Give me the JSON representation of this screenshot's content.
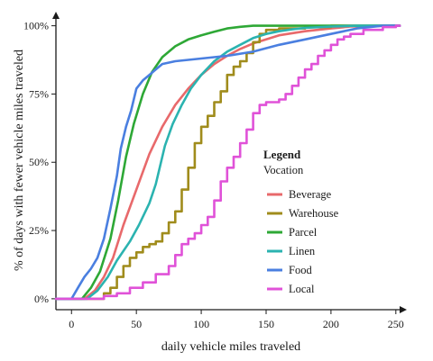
{
  "chart_data": {
    "type": "line",
    "xlabel": "daily vehicle miles traveled",
    "ylabel": "% of days with fewer vehicle miles traveled",
    "xlim": [
      -12,
      255
    ],
    "ylim": [
      -0.04,
      1.035
    ],
    "x_ticks": [
      {
        "value": 0,
        "label": "0"
      },
      {
        "value": 50,
        "label": "50"
      },
      {
        "value": 100,
        "label": "100"
      },
      {
        "value": 150,
        "label": "150"
      },
      {
        "value": 200,
        "label": "200"
      },
      {
        "value": 250,
        "label": "250"
      }
    ],
    "y_ticks": [
      {
        "value": 0,
        "label": "0%"
      },
      {
        "value": 0.25,
        "label": "25%"
      },
      {
        "value": 0.5,
        "label": "50%"
      },
      {
        "value": 0.75,
        "label": "75%"
      },
      {
        "value": 1.0,
        "label": "100%"
      }
    ],
    "grid": false,
    "legend": {
      "title": "Legend",
      "subtitle": "Vocation",
      "position": "right"
    },
    "series": [
      {
        "name": "Beverage",
        "color": "#e8696b",
        "step": false,
        "points": [
          [
            10,
            0
          ],
          [
            18,
            0.03
          ],
          [
            25,
            0.08
          ],
          [
            32,
            0.15
          ],
          [
            40,
            0.27
          ],
          [
            50,
            0.4
          ],
          [
            60,
            0.53
          ],
          [
            70,
            0.63
          ],
          [
            80,
            0.71
          ],
          [
            90,
            0.77
          ],
          [
            100,
            0.82
          ],
          [
            110,
            0.86
          ],
          [
            120,
            0.89
          ],
          [
            130,
            0.915
          ],
          [
            140,
            0.935
          ],
          [
            150,
            0.95
          ],
          [
            160,
            0.965
          ],
          [
            180,
            0.98
          ],
          [
            200,
            0.99
          ],
          [
            215,
            0.997
          ],
          [
            250,
            1.0
          ]
        ]
      },
      {
        "name": "Warehouse",
        "color": "#a08c1c",
        "step": true,
        "points": [
          [
            20,
            0
          ],
          [
            25,
            0.02
          ],
          [
            30,
            0.04
          ],
          [
            35,
            0.08
          ],
          [
            40,
            0.12
          ],
          [
            45,
            0.15
          ],
          [
            50,
            0.17
          ],
          [
            55,
            0.19
          ],
          [
            60,
            0.2
          ],
          [
            65,
            0.21
          ],
          [
            70,
            0.24
          ],
          [
            75,
            0.28
          ],
          [
            80,
            0.32
          ],
          [
            85,
            0.4
          ],
          [
            90,
            0.48
          ],
          [
            95,
            0.57
          ],
          [
            100,
            0.63
          ],
          [
            105,
            0.67
          ],
          [
            110,
            0.72
          ],
          [
            115,
            0.76
          ],
          [
            120,
            0.82
          ],
          [
            125,
            0.85
          ],
          [
            130,
            0.87
          ],
          [
            135,
            0.9
          ],
          [
            140,
            0.94
          ],
          [
            145,
            0.97
          ],
          [
            150,
            0.985
          ],
          [
            160,
            0.99
          ],
          [
            180,
            0.995
          ],
          [
            200,
            1.0
          ],
          [
            250,
            1.0
          ]
        ]
      },
      {
        "name": "Parcel",
        "color": "#2ea836",
        "step": false,
        "points": [
          [
            8,
            0
          ],
          [
            15,
            0.04
          ],
          [
            22,
            0.1
          ],
          [
            30,
            0.22
          ],
          [
            36,
            0.36
          ],
          [
            42,
            0.52
          ],
          [
            48,
            0.64
          ],
          [
            55,
            0.75
          ],
          [
            62,
            0.83
          ],
          [
            70,
            0.885
          ],
          [
            80,
            0.925
          ],
          [
            90,
            0.95
          ],
          [
            100,
            0.965
          ],
          [
            110,
            0.978
          ],
          [
            120,
            0.99
          ],
          [
            130,
            0.996
          ],
          [
            140,
            1.0
          ],
          [
            250,
            1.0
          ]
        ]
      },
      {
        "name": "Linen",
        "color": "#2bb3b0",
        "step": false,
        "points": [
          [
            12,
            0
          ],
          [
            20,
            0.03
          ],
          [
            28,
            0.08
          ],
          [
            35,
            0.14
          ],
          [
            45,
            0.21
          ],
          [
            52,
            0.27
          ],
          [
            60,
            0.35
          ],
          [
            65,
            0.42
          ],
          [
            72,
            0.56
          ],
          [
            78,
            0.64
          ],
          [
            85,
            0.71
          ],
          [
            92,
            0.77
          ],
          [
            100,
            0.82
          ],
          [
            110,
            0.87
          ],
          [
            120,
            0.905
          ],
          [
            130,
            0.93
          ],
          [
            140,
            0.955
          ],
          [
            150,
            0.97
          ],
          [
            160,
            0.98
          ],
          [
            170,
            0.987
          ],
          [
            180,
            0.992
          ],
          [
            200,
            0.997
          ],
          [
            220,
            1.0
          ],
          [
            250,
            1.0
          ]
        ]
      },
      {
        "name": "Food",
        "color": "#4a7fe0",
        "step": false,
        "points": [
          [
            0,
            0
          ],
          [
            5,
            0.04
          ],
          [
            10,
            0.08
          ],
          [
            15,
            0.11
          ],
          [
            20,
            0.15
          ],
          [
            25,
            0.22
          ],
          [
            30,
            0.33
          ],
          [
            35,
            0.45
          ],
          [
            38,
            0.55
          ],
          [
            42,
            0.63
          ],
          [
            46,
            0.69
          ],
          [
            50,
            0.77
          ],
          [
            55,
            0.8
          ],
          [
            60,
            0.82
          ],
          [
            65,
            0.84
          ],
          [
            70,
            0.86
          ],
          [
            80,
            0.87
          ],
          [
            90,
            0.875
          ],
          [
            100,
            0.88
          ],
          [
            120,
            0.89
          ],
          [
            140,
            0.905
          ],
          [
            160,
            0.93
          ],
          [
            180,
            0.95
          ],
          [
            200,
            0.97
          ],
          [
            220,
            0.99
          ],
          [
            240,
            1.0
          ],
          [
            250,
            1.0
          ]
        ]
      },
      {
        "name": "Local",
        "color": "#e052d8",
        "step": true,
        "points": [
          [
            15,
            0
          ],
          [
            25,
            0.01
          ],
          [
            35,
            0.02
          ],
          [
            45,
            0.04
          ],
          [
            55,
            0.06
          ],
          [
            65,
            0.09
          ],
          [
            75,
            0.12
          ],
          [
            80,
            0.16
          ],
          [
            85,
            0.2
          ],
          [
            90,
            0.22
          ],
          [
            95,
            0.24
          ],
          [
            100,
            0.27
          ],
          [
            105,
            0.3
          ],
          [
            110,
            0.36
          ],
          [
            115,
            0.43
          ],
          [
            120,
            0.48
          ],
          [
            125,
            0.52
          ],
          [
            130,
            0.57
          ],
          [
            135,
            0.62
          ],
          [
            140,
            0.68
          ],
          [
            145,
            0.71
          ],
          [
            150,
            0.72
          ],
          [
            155,
            0.72
          ],
          [
            160,
            0.73
          ],
          [
            165,
            0.75
          ],
          [
            170,
            0.78
          ],
          [
            175,
            0.81
          ],
          [
            180,
            0.84
          ],
          [
            185,
            0.86
          ],
          [
            190,
            0.89
          ],
          [
            195,
            0.91
          ],
          [
            200,
            0.93
          ],
          [
            205,
            0.95
          ],
          [
            210,
            0.96
          ],
          [
            215,
            0.97
          ],
          [
            225,
            0.985
          ],
          [
            240,
            0.995
          ],
          [
            250,
            1.0
          ]
        ]
      }
    ]
  }
}
